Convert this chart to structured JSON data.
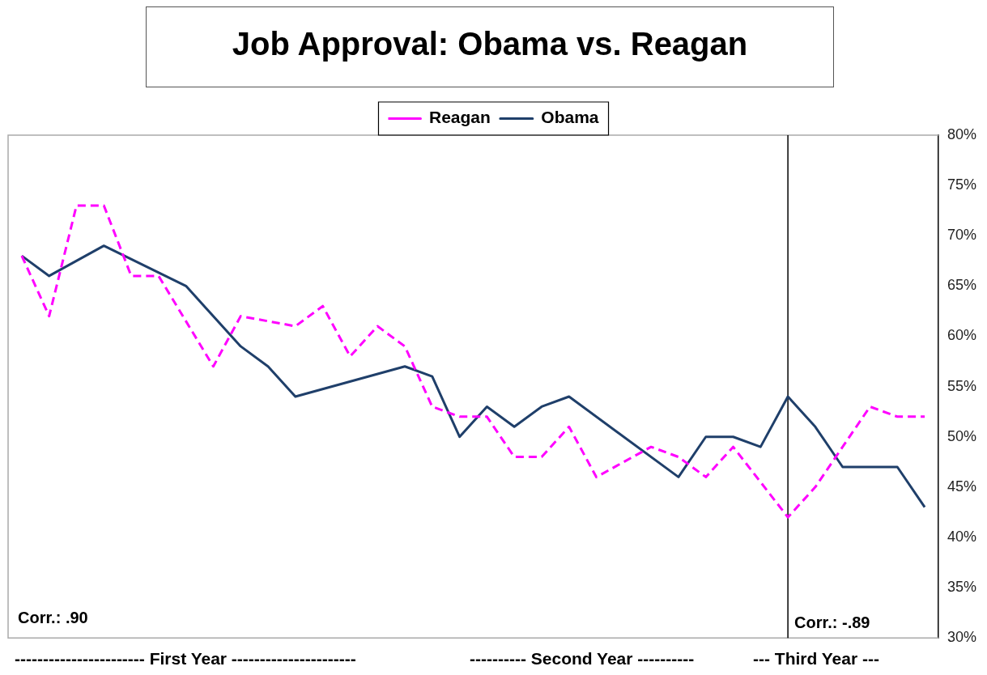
{
  "chart_data": {
    "type": "line",
    "title": "Job Approval: Obama vs. Reagan",
    "categories": [
      null,
      null,
      null,
      null,
      null,
      null,
      null,
      null,
      null,
      null,
      null,
      null,
      null,
      null,
      null,
      null,
      null,
      null,
      null,
      null,
      null,
      null,
      null,
      null,
      null,
      null,
      null,
      null,
      null,
      null,
      null,
      null,
      null,
      null
    ],
    "series": [
      {
        "name": "Reagan",
        "color": "#ff00ff",
        "line_style": "dashed",
        "values": [
          68,
          62,
          73,
          73,
          66,
          66,
          null,
          57,
          62,
          null,
          61,
          63,
          58,
          61,
          59,
          53,
          52,
          52,
          48,
          48,
          51,
          46,
          null,
          49,
          48,
          46,
          49,
          null,
          42,
          45,
          null,
          53,
          52,
          52
        ]
      },
      {
        "name": "Obama",
        "color": "#1f3f6a",
        "line_style": "solid",
        "values": [
          68,
          66,
          null,
          69,
          null,
          null,
          65,
          null,
          59,
          57,
          54,
          null,
          null,
          null,
          57,
          56,
          50,
          53,
          51,
          53,
          54,
          null,
          null,
          null,
          46,
          50,
          50,
          49,
          54,
          51,
          47,
          null,
          47,
          43
        ]
      }
    ],
    "ylim": [
      30,
      80
    ],
    "yticks": [
      {
        "value": 30,
        "label": "30%"
      },
      {
        "value": 35,
        "label": "35%"
      },
      {
        "value": 40,
        "label": "40%"
      },
      {
        "value": 45,
        "label": "45%"
      },
      {
        "value": 50,
        "label": "50%"
      },
      {
        "value": 55,
        "label": "55%"
      },
      {
        "value": 60,
        "label": "60%"
      },
      {
        "value": 65,
        "label": "65%"
      },
      {
        "value": 70,
        "label": "70%"
      },
      {
        "value": 75,
        "label": "75%"
      },
      {
        "value": 80,
        "label": "80%"
      }
    ],
    "annotations": [
      "Corr.: .90",
      "Corr.: -.89",
      "----------------------- First Year ----------------------",
      "---------- Second Year ----------",
      "--- Third Year ---"
    ],
    "grid": false,
    "legend": "top",
    "marker": "none"
  }
}
